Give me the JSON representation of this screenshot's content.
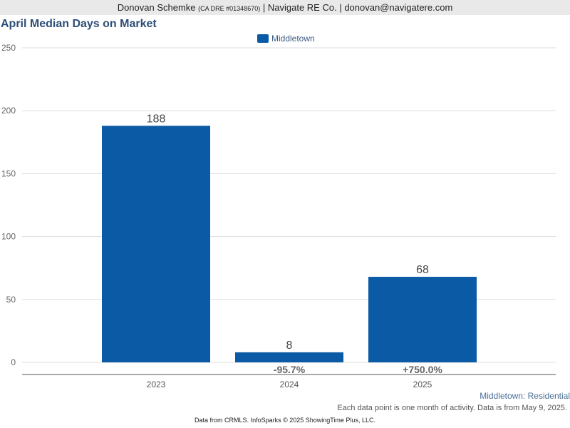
{
  "header": {
    "agent_name": "Donovan Schemke",
    "license": "(CA DRE #01348670)",
    "separator_1": "|",
    "company": "Navigate RE Co.",
    "separator_2": "|",
    "email": "donovan@navigatere.com"
  },
  "footer": {
    "market_label": "Middletown: Residential",
    "note": "Each data point is one month of activity. Data is from May 9, 2025.",
    "credit": "Data from CRMLS. InfoSparks © 2025 ShowingTime Plus, LLC."
  },
  "colors": {
    "bar": "#0a5aa5",
    "title": "#2c4e77",
    "grid": "#dddddd"
  },
  "chart_data": {
    "type": "bar",
    "title": "April Median Days on Market",
    "categories": [
      "2023",
      "2024",
      "2025"
    ],
    "series": [
      {
        "name": "Middletown",
        "values": [
          188,
          8,
          68
        ]
      }
    ],
    "change_labels": [
      "",
      "-95.7%",
      "+750.0%"
    ],
    "yticks": [
      "0",
      "50",
      "100",
      "150",
      "200",
      "250"
    ],
    "ylim": [
      0,
      250
    ],
    "grid": true,
    "legend_position": "top-center"
  }
}
